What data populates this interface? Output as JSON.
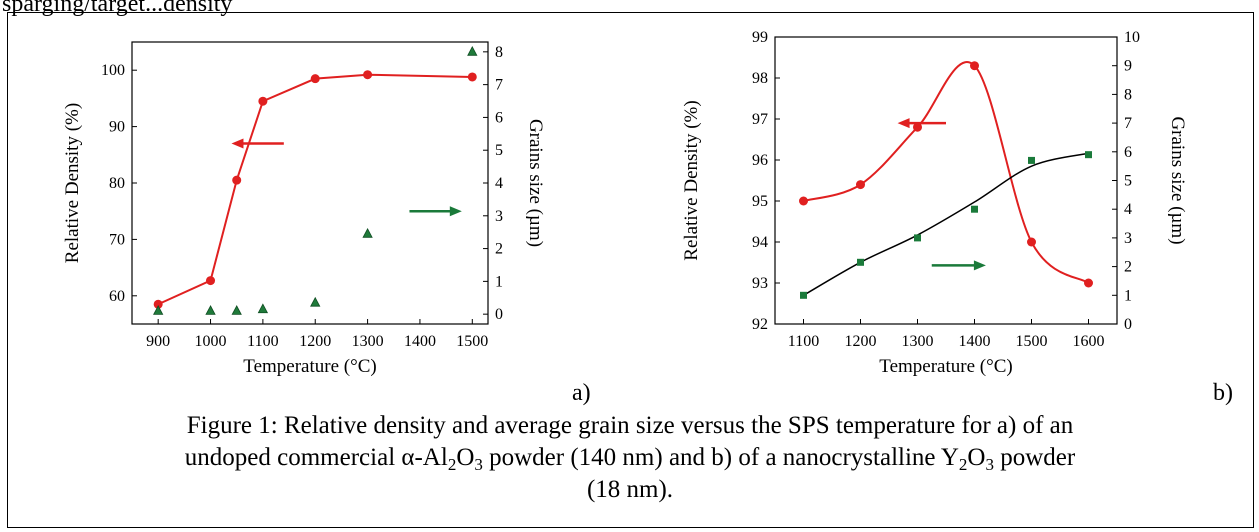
{
  "header_text": "sparging/target...density",
  "colors": {
    "density": "#e02020",
    "grain": "#1a7a3a",
    "grain_b_line": "#000000"
  },
  "panel_tags": [
    "a)",
    "b)"
  ],
  "caption": {
    "line1": "Figure 1:  Relative density and average grain size versus the SPS temperature for a) of an",
    "line2_p1": "undoped commercial α-Al",
    "sub1": "2",
    "line2_p2": "O",
    "sub2": "3",
    "line2_p3": " powder (140 nm) and  b) of a nanocrystalline Y",
    "sub3": "2",
    "line2_p4": "O",
    "sub4": "3",
    "line2_p5": " powder",
    "line3": "(18 nm)."
  },
  "chart_data": [
    {
      "type": "line",
      "xlabel": "Temperature (°C)",
      "ylabel": "Relative Density (%)",
      "y2label": "Grains size (µm)",
      "xlim": [
        850,
        1530
      ],
      "ylim": [
        55,
        105
      ],
      "y2lim": [
        -0.3,
        8.3
      ],
      "xticks": [
        900,
        1000,
        1100,
        1200,
        1300,
        1400,
        1500
      ],
      "yticks": [
        60,
        70,
        80,
        90,
        100
      ],
      "y2ticks": [
        0,
        1,
        2,
        3,
        4,
        5,
        6,
        7,
        8
      ],
      "series": [
        {
          "axis": "left",
          "marker": "circle",
          "line": "straight",
          "x": [
            900,
            1000,
            1050,
            1100,
            1200,
            1300,
            1500
          ],
          "y": [
            58.5,
            62.7,
            80.5,
            94.5,
            98.5,
            99.2,
            98.8
          ]
        },
        {
          "axis": "right",
          "marker": "triangle",
          "line": "none",
          "x": [
            900,
            1000,
            1050,
            1100,
            1200,
            1300,
            1500
          ],
          "y": [
            0.1,
            0.1,
            0.1,
            0.15,
            0.35,
            2.45,
            8.0
          ]
        }
      ],
      "arrows": [
        {
          "direction": "left",
          "x": [
            1140,
            1040
          ],
          "y": 87,
          "axis": "left",
          "color": "density"
        },
        {
          "direction": "right",
          "x": [
            1380,
            1480
          ],
          "y": 75,
          "axis": "left",
          "color": "grain"
        }
      ]
    },
    {
      "type": "line",
      "xlabel": "Temperature (°C)",
      "ylabel": "Relative Density (%)",
      "y2label": "Grains size (µm)",
      "xlim": [
        1050,
        1650
      ],
      "ylim": [
        92,
        99
      ],
      "y2lim": [
        0,
        10
      ],
      "xticks": [
        1100,
        1200,
        1300,
        1400,
        1500,
        1600
      ],
      "yticks": [
        92,
        93,
        94,
        95,
        96,
        97,
        98,
        99
      ],
      "y2ticks": [
        0,
        1,
        2,
        3,
        4,
        5,
        6,
        7,
        8,
        9,
        10
      ],
      "series": [
        {
          "axis": "left",
          "marker": "circle",
          "line": "smooth",
          "x": [
            1100,
            1200,
            1300,
            1400,
            1500,
            1600
          ],
          "y": [
            95.0,
            95.4,
            96.8,
            98.3,
            94.0,
            93.0
          ]
        },
        {
          "axis": "right",
          "marker": "square",
          "line": "smooth",
          "x": [
            1100,
            1200,
            1300,
            1400,
            1500,
            1600
          ],
          "y": [
            1.0,
            2.15,
            3.0,
            4.0,
            5.7,
            5.9
          ],
          "fit": [
            1.0,
            2.15,
            3.1,
            4.25,
            5.5,
            5.95
          ]
        }
      ],
      "arrows": [
        {
          "direction": "left",
          "x": [
            1350,
            1265
          ],
          "y": 96.9,
          "axis": "left",
          "color": "density"
        },
        {
          "direction": "right",
          "x": [
            1325,
            1420
          ],
          "y": 93.43,
          "axis": "left",
          "color": "grain"
        }
      ]
    }
  ]
}
